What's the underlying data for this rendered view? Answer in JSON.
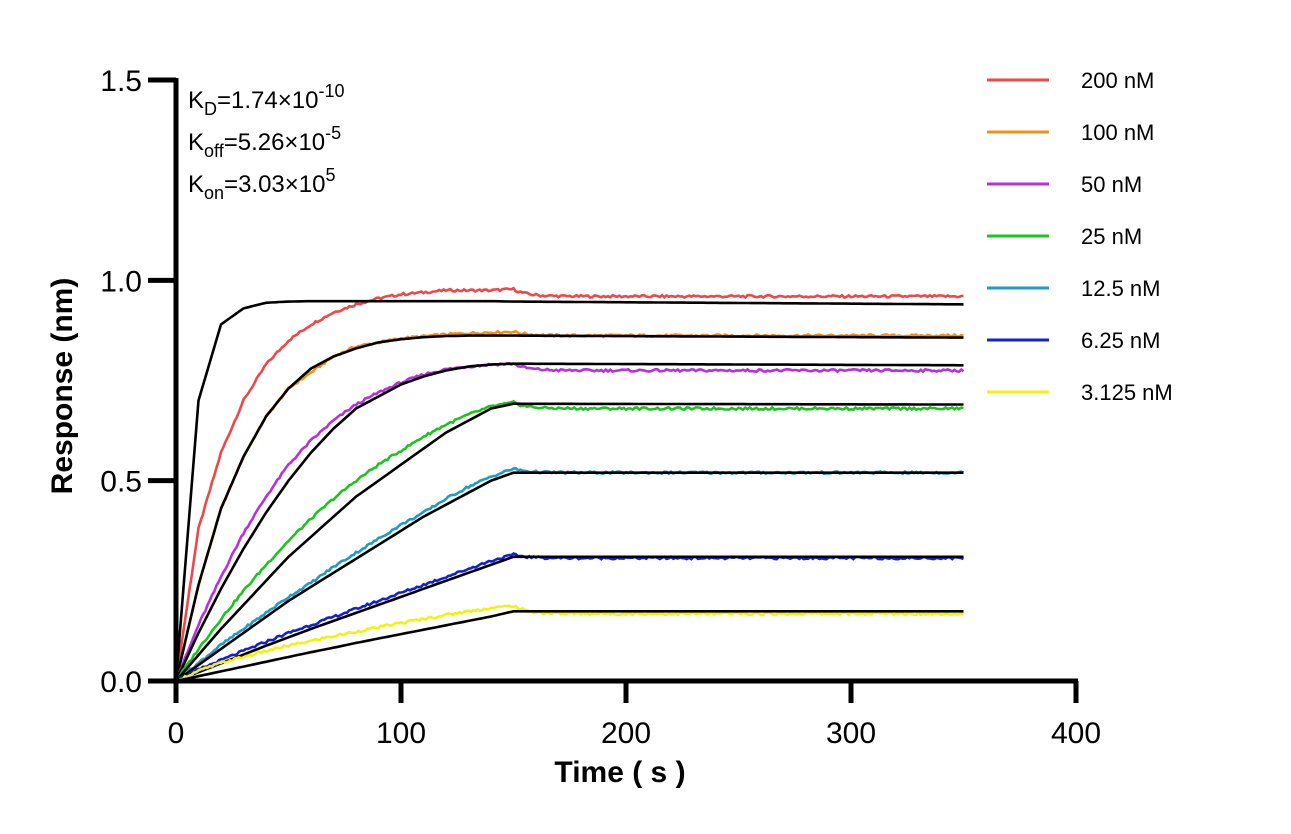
{
  "chart_data": {
    "type": "line",
    "xlabel": "Time ( s )",
    "ylabel": "Response (nm)",
    "xlim": [
      0,
      400
    ],
    "ylim": [
      0,
      1.5
    ],
    "x_ticks": [
      "0",
      "100",
      "200",
      "300",
      "400"
    ],
    "y_ticks": [
      "0.0",
      "0.5",
      "1.0",
      "1.5"
    ],
    "grid": false,
    "legend_position": "top-right",
    "annotations": {
      "kd": {
        "symbol": "K",
        "sub": "D",
        "text": "=1.74×10",
        "exp": "-10"
      },
      "koff": {
        "symbol": "K",
        "sub": "off",
        "text": "=5.26×10",
        "exp": "-5"
      },
      "kon": {
        "symbol": "K",
        "sub": "on",
        "text": "=3.03×10",
        "exp": "5"
      }
    },
    "association_end_s": 150,
    "end_s": 350,
    "series": [
      {
        "name": "200 nM",
        "color": "#f04747",
        "rise": [
          0,
          0.38,
          0.57,
          0.7,
          0.79,
          0.85,
          0.89,
          0.92,
          0.94,
          0.955,
          0.965,
          0.97,
          0.975,
          0.975,
          0.975,
          0.978
        ],
        "plateau": 0.96,
        "fit_rise": [
          0,
          0.7,
          0.89,
          0.93,
          0.944,
          0.947,
          0.948,
          0.948,
          0.948,
          0.948,
          0.948,
          0.948,
          0.948,
          0.948,
          0.948,
          0.947
        ],
        "fit_end": 0.94
      },
      {
        "name": "100 nM",
        "color": "#f39019",
        "rise": [
          0,
          0.24,
          0.43,
          0.56,
          0.66,
          0.73,
          0.77,
          0.81,
          0.835,
          0.845,
          0.855,
          0.86,
          0.865,
          0.868,
          0.87,
          0.872
        ],
        "plateau": 0.862,
        "fit_rise": [
          0,
          0.24,
          0.43,
          0.56,
          0.66,
          0.73,
          0.78,
          0.81,
          0.83,
          0.845,
          0.853,
          0.858,
          0.861,
          0.862,
          0.862,
          0.862
        ],
        "fit_end": 0.857
      },
      {
        "name": "50 nM",
        "color": "#b92fe0",
        "rise": [
          0,
          0.14,
          0.26,
          0.37,
          0.46,
          0.54,
          0.6,
          0.65,
          0.69,
          0.72,
          0.745,
          0.765,
          0.778,
          0.785,
          0.79,
          0.792
        ],
        "plateau": 0.775,
        "fit_rise": [
          0,
          0.12,
          0.23,
          0.33,
          0.42,
          0.5,
          0.57,
          0.63,
          0.68,
          0.71,
          0.74,
          0.76,
          0.775,
          0.785,
          0.79,
          0.792
        ],
        "fit_end": 0.788
      },
      {
        "name": "25 nM",
        "color": "#1ec41e",
        "rise": [
          0,
          0.08,
          0.155,
          0.225,
          0.29,
          0.35,
          0.405,
          0.455,
          0.5,
          0.54,
          0.575,
          0.61,
          0.64,
          0.665,
          0.685,
          0.695
        ],
        "plateau": 0.68,
        "fit_rise": [
          0,
          0.065,
          0.13,
          0.19,
          0.25,
          0.31,
          0.36,
          0.41,
          0.46,
          0.5,
          0.54,
          0.58,
          0.62,
          0.65,
          0.68,
          0.692
        ],
        "fit_end": 0.69
      },
      {
        "name": "12.5 nM",
        "color": "#1f9cc6",
        "rise": [
          0,
          0.045,
          0.09,
          0.13,
          0.17,
          0.21,
          0.245,
          0.285,
          0.32,
          0.355,
          0.39,
          0.42,
          0.455,
          0.485,
          0.51,
          0.53
        ],
        "plateau": 0.52,
        "fit_rise": [
          0,
          0.04,
          0.08,
          0.12,
          0.16,
          0.2,
          0.235,
          0.27,
          0.305,
          0.34,
          0.375,
          0.41,
          0.44,
          0.47,
          0.5,
          0.52
        ],
        "fit_end": 0.52
      },
      {
        "name": "6.25 nM",
        "color": "#1420d4",
        "rise": [
          0,
          0.028,
          0.052,
          0.075,
          0.098,
          0.12,
          0.14,
          0.16,
          0.18,
          0.2,
          0.22,
          0.24,
          0.26,
          0.28,
          0.3,
          0.315
        ],
        "plateau": 0.307,
        "fit_rise": [
          0,
          0.022,
          0.044,
          0.066,
          0.088,
          0.109,
          0.13,
          0.15,
          0.17,
          0.19,
          0.21,
          0.23,
          0.25,
          0.27,
          0.29,
          0.31
        ],
        "fit_end": 0.31
      },
      {
        "name": "3.125 nM",
        "color": "#f2f20f",
        "rise": [
          0,
          0.025,
          0.045,
          0.06,
          0.075,
          0.088,
          0.1,
          0.112,
          0.123,
          0.134,
          0.145,
          0.155,
          0.165,
          0.174,
          0.182,
          0.188
        ],
        "plateau": 0.168,
        "fit_rise": [
          0,
          0.012,
          0.024,
          0.036,
          0.048,
          0.06,
          0.072,
          0.083,
          0.095,
          0.106,
          0.117,
          0.128,
          0.139,
          0.15,
          0.161,
          0.174
        ],
        "fit_end": 0.174
      }
    ]
  }
}
